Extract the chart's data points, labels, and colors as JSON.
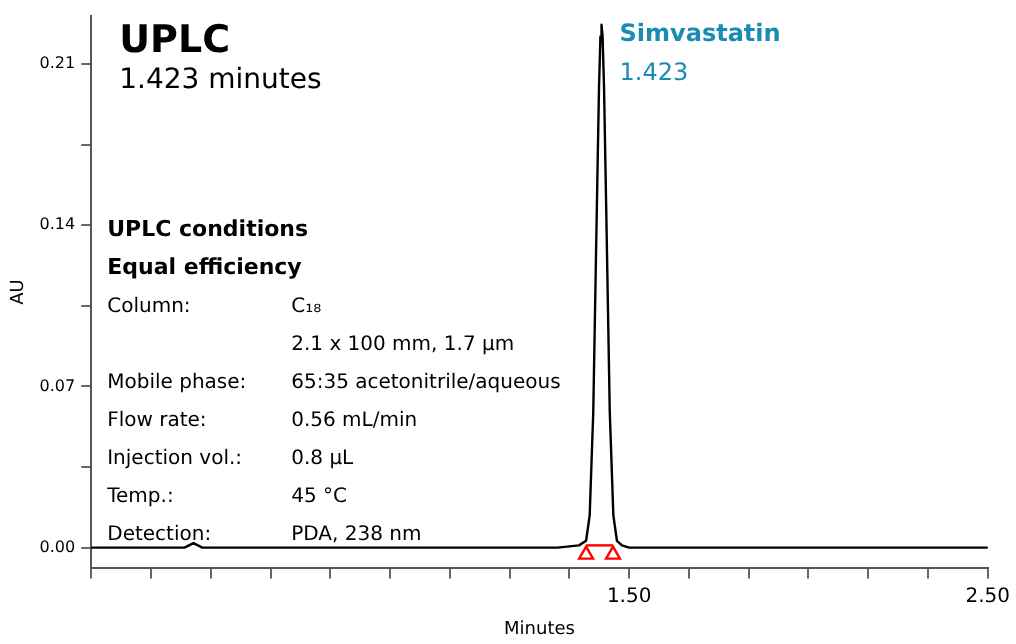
{
  "chart_data": {
    "type": "line",
    "title": "UPLC",
    "subtitle": "1.423 minutes",
    "xlabel": "Minutes",
    "ylabel": "AU",
    "series": [
      {
        "color": "#000000",
        "x": [
          0,
          0.1,
          0.2,
          0.26,
          0.285,
          0.31,
          0.4,
          0.6,
          0.8,
          1.0,
          1.2,
          1.3,
          1.36,
          1.38,
          1.39,
          1.4,
          1.41,
          1.416,
          1.42,
          1.423,
          1.426,
          1.43,
          1.436,
          1.446,
          1.456,
          1.466,
          1.48,
          1.5,
          1.7,
          2.0,
          2.5
        ],
        "values": [
          0,
          0,
          0,
          0,
          0.002,
          0,
          0,
          0,
          0,
          0,
          0,
          0,
          0.001,
          0.003,
          0.014,
          0.059,
          0.148,
          0.2,
          0.222,
          0.227,
          0.222,
          0.2,
          0.148,
          0.059,
          0.014,
          0.003,
          0.001,
          0,
          0,
          0,
          0
        ]
      },
      {
        "color": "#ff0000",
        "x": [
          1.38,
          1.455
        ],
        "values": [
          0.001,
          0.001
        ]
      },
      {
        "type": "scatter",
        "color": "#ff0000",
        "marker": "triangle",
        "x": [
          1.38,
          1.455
        ],
        "values": [
          -0.003,
          -0.003
        ]
      }
    ],
    "xlim": [
      0,
      2.5
    ],
    "ylim": [
      -0.009,
      0.231
    ],
    "xticks": [
      {
        "value": 0,
        "label": null
      },
      {
        "value": 0.167,
        "label": null
      },
      {
        "value": 0.333,
        "label": null
      },
      {
        "value": 0.5,
        "label": null
      },
      {
        "value": 0.667,
        "label": null
      },
      {
        "value": 0.833,
        "label": null
      },
      {
        "value": 1,
        "label": null
      },
      {
        "value": 1.167,
        "label": null
      },
      {
        "value": 1.333,
        "label": null
      },
      {
        "value": 1.5,
        "label": "1.50"
      },
      {
        "value": 1.667,
        "label": null
      },
      {
        "value": 1.833,
        "label": null
      },
      {
        "value": 2,
        "label": null
      },
      {
        "value": 2.167,
        "label": null
      },
      {
        "value": 2.333,
        "label": null
      },
      {
        "value": 2.5,
        "label": "2.50"
      }
    ],
    "yticks": [
      {
        "value": 0,
        "label": "0.00"
      },
      {
        "value": 0.035,
        "label": null
      },
      {
        "value": 0.07,
        "label": "0.07"
      },
      {
        "value": 0.105,
        "label": null
      },
      {
        "value": 0.14,
        "label": "0.14"
      },
      {
        "value": 0.175,
        "label": null
      },
      {
        "value": 0.21,
        "label": "0.21"
      }
    ],
    "grid": false,
    "legend": false,
    "annotations": [
      {
        "text": "Simvastatin",
        "x": 1.423,
        "y": 0.227
      },
      {
        "text": "1.423",
        "x": 1.423,
        "y": 0.21
      },
      "UPLC conditions",
      "Equal efficiency",
      "Column: C₁₈",
      "2.1 x 100 mm, 1.7 µm",
      "Mobile phase: 65:35 acetonitrile/aqueous",
      "Flow rate: 0.56 mL/min",
      "Injection vol.: 0.8 µL",
      "Temp.: 45 °C",
      "Detection: PDA, 238 nm"
    ]
  }
}
